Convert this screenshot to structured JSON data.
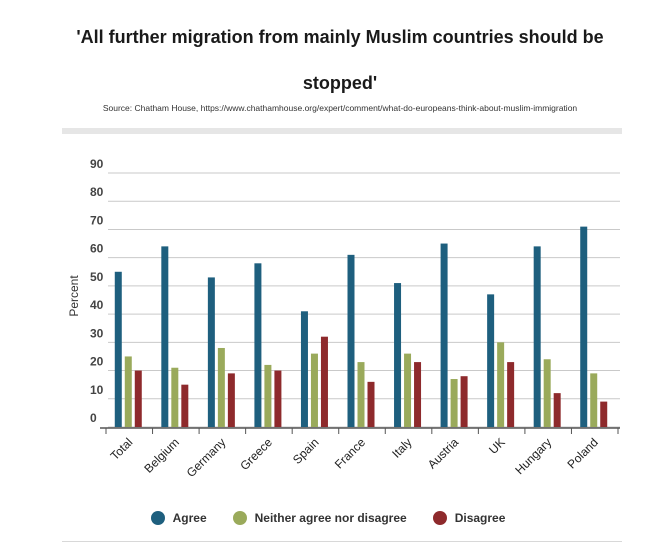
{
  "chart_data": {
    "type": "bar",
    "title": "'All further migration from mainly Muslim countries should be stopped'",
    "subtitle": "Source: Chatham House, https://www.chathamhouse.org/expert/comment/what-do-europeans-think-about-muslim-immigration",
    "xlabel": "",
    "ylabel": "Percent",
    "ylim": [
      0,
      90
    ],
    "yticks": [
      "0",
      "10",
      "20",
      "30",
      "40",
      "50",
      "60",
      "70",
      "80",
      "90"
    ],
    "grid": true,
    "legend_position": "bottom",
    "categories": [
      "Total",
      "Belgium",
      "Germany",
      "Greece",
      "Spain",
      "France",
      "Italy",
      "Austria",
      "UK",
      "Hungary",
      "Poland"
    ],
    "series": [
      {
        "name": "Agree",
        "color": "#1e5f7e",
        "values": [
          55,
          64,
          53,
          58,
          41,
          61,
          51,
          65,
          47,
          64,
          71
        ]
      },
      {
        "name": "Neither agree nor disagree",
        "color": "#9aaa5b",
        "values": [
          25,
          21,
          28,
          22,
          26,
          23,
          26,
          17,
          30,
          24,
          19
        ]
      },
      {
        "name": "Disagree",
        "color": "#8e2a2c",
        "values": [
          20,
          15,
          19,
          20,
          32,
          16,
          23,
          18,
          23,
          12,
          9
        ]
      }
    ]
  }
}
